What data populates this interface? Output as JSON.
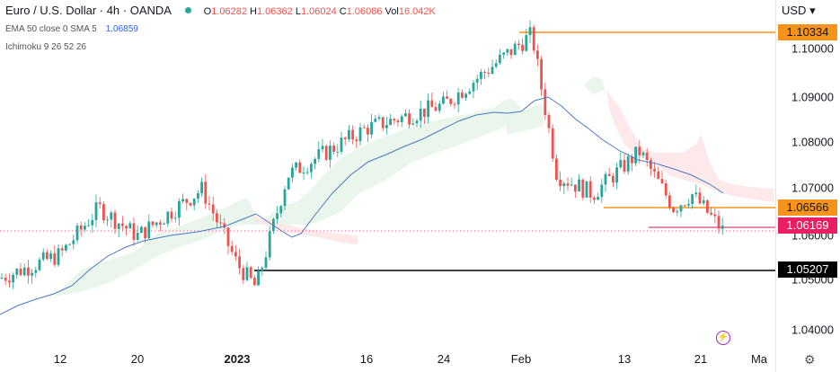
{
  "header": {
    "symbol_title": "Euro / U.S. Dollar · 4h · OANDA",
    "ohlc": {
      "o_label": "O",
      "o": "1.06282",
      "h_label": "H",
      "h": "1.06362",
      "l_label": "L",
      "l": "1.06024",
      "c_label": "C",
      "c": "1.06086",
      "vol_label": "Vol",
      "vol": "16.042K"
    },
    "indicators": [
      {
        "label": "EMA 50 close 0 SMA 5",
        "value": "1.06859"
      },
      {
        "label": "Ichimoku 9 26 52 26"
      }
    ]
  },
  "price_axis": {
    "currency": "USD",
    "ticks": [
      "1.10000",
      "1.09000",
      "1.08000",
      "1.07000",
      "1.06000",
      "1.05000",
      "1.04000"
    ],
    "tags": [
      {
        "value": "1.10334",
        "bg": "#f7931a",
        "color": "#131722"
      },
      {
        "value": "1.06566",
        "bg": "#f7931a",
        "color": "#131722"
      },
      {
        "value": "1.06169",
        "bg": "#e91e63",
        "color": "#ffffff"
      },
      {
        "value": "1.05207",
        "bg": "#000000",
        "color": "#ffffff"
      }
    ]
  },
  "time_axis": {
    "labels": [
      {
        "text": "12",
        "bold": false
      },
      {
        "text": "20",
        "bold": false
      },
      {
        "text": "2023",
        "bold": true
      },
      {
        "text": "16",
        "bold": false
      },
      {
        "text": "24",
        "bold": false
      },
      {
        "text": "Feb",
        "bold": false
      },
      {
        "text": "13",
        "bold": false
      },
      {
        "text": "21",
        "bold": false
      },
      {
        "text": "Ma",
        "bold": false
      }
    ]
  },
  "icons": {
    "settings": "gear-icon",
    "replay": "lightning-icon"
  },
  "colors": {
    "up": "#26a69a",
    "down": "#ef5350",
    "ema": "#2962ff",
    "resistance": "#f7931a",
    "current": "#e91e63",
    "support": "#000000"
  },
  "chart_data": {
    "type": "candlestick",
    "title": "Euro / U.S. Dollar · 4h · OANDA",
    "ylabel": "USD",
    "ylim": [
      1.035,
      1.105
    ],
    "x_ticks": [
      "12",
      "20",
      "2023",
      "16",
      "24",
      "Feb",
      "13",
      "21",
      "Ma"
    ],
    "last_ohlc": {
      "open": 1.06282,
      "high": 1.06362,
      "low": 1.06024,
      "close": 1.06086,
      "volume": "16.042K"
    },
    "ema50": 1.06859,
    "horizontal_levels": [
      {
        "price": 1.10334,
        "color": "orange",
        "label": "resistance high"
      },
      {
        "price": 1.06566,
        "color": "orange",
        "label": "resistance"
      },
      {
        "price": 1.06169,
        "color": "magenta",
        "label": "current"
      },
      {
        "price": 1.05207,
        "color": "black",
        "label": "support"
      }
    ],
    "approx_path": [
      {
        "x": "Dec 08",
        "price": 1.051
      },
      {
        "x": "Dec 12",
        "price": 1.056
      },
      {
        "x": "Dec 15",
        "price": 1.066
      },
      {
        "x": "Dec 20",
        "price": 1.06
      },
      {
        "x": "Dec 30",
        "price": 1.07
      },
      {
        "x": "Jan 03",
        "price": 1.054
      },
      {
        "x": "Jan 06",
        "price": 1.049
      },
      {
        "x": "Jan 10",
        "price": 1.073
      },
      {
        "x": "Jan 16",
        "price": 1.083
      },
      {
        "x": "Jan 24",
        "price": 1.088
      },
      {
        "x": "Feb 02",
        "price": 1.103
      },
      {
        "x": "Feb 06",
        "price": 1.073
      },
      {
        "x": "Feb 10",
        "price": 1.069
      },
      {
        "x": "Feb 14",
        "price": 1.078
      },
      {
        "x": "Feb 17",
        "price": 1.066
      },
      {
        "x": "Feb 20",
        "price": 1.069
      },
      {
        "x": "Feb 23",
        "price": 1.061
      }
    ],
    "grid": false
  }
}
